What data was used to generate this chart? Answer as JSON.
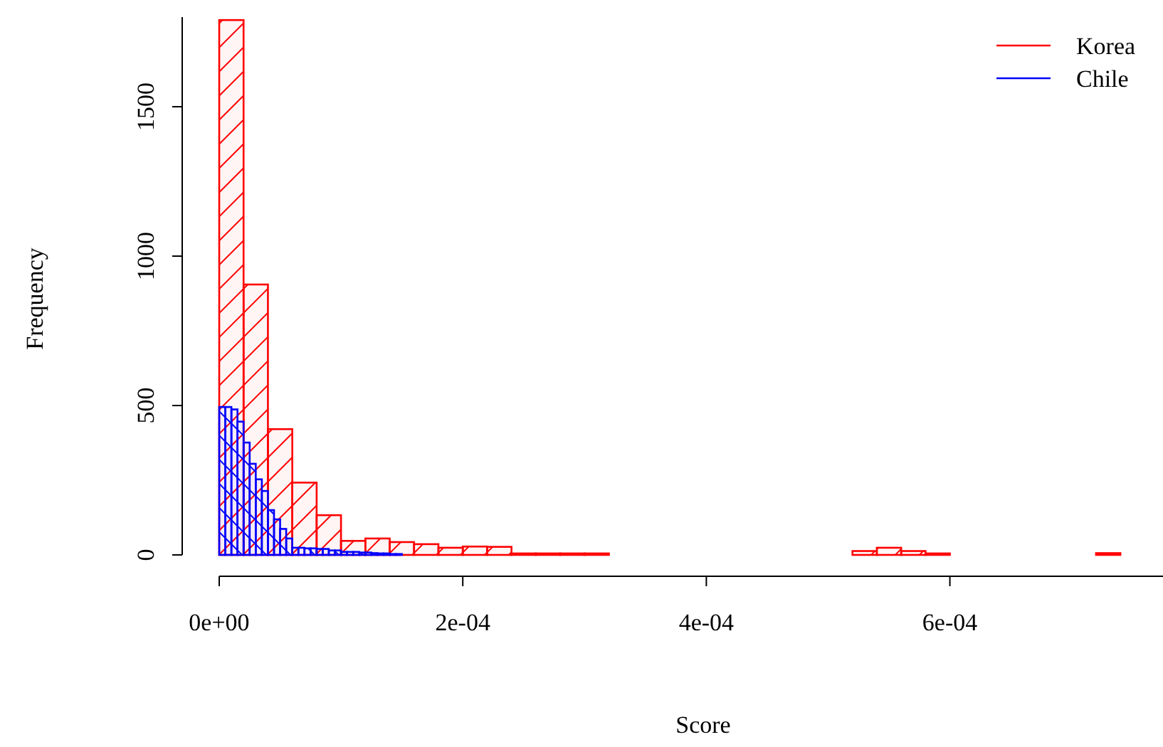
{
  "chart_data": {
    "type": "histogram",
    "xlabel": "Score",
    "ylabel": "Frequency",
    "xlim": [
      0,
      0.000775
    ],
    "ylim": [
      0,
      1800
    ],
    "xticks": [
      {
        "value": 0,
        "label": "0e+00"
      },
      {
        "value": 0.0002,
        "label": "2e-04"
      },
      {
        "value": 0.0004,
        "label": "4e-04"
      },
      {
        "value": 0.0006,
        "label": "6e-04"
      }
    ],
    "yticks": [
      0,
      500,
      1000,
      1500
    ],
    "legend": "top right",
    "grid": false,
    "bins": [
      0,
      2e-05,
      4e-05,
      6e-05,
      8e-05,
      0.0001,
      0.00012,
      0.00014,
      0.00016,
      0.00018,
      0.0002,
      0.00022,
      0.00024,
      0.00026,
      0.00028,
      0.0003,
      0.00032,
      0.00034,
      0.00036,
      0.00038,
      0.0004,
      0.00042,
      0.00044,
      0.00046,
      0.00048,
      0.0005,
      0.00052,
      0.00054,
      0.00056,
      0.00058,
      0.0006,
      0.00062,
      0.00064,
      0.00066,
      0.00068,
      0.0007,
      0.00072,
      0.00074,
      0.00076
    ],
    "series": [
      {
        "name": "Korea",
        "color": "#ff0000",
        "values": [
          1790,
          905,
          421,
          242,
          133,
          47,
          55,
          43,
          36,
          24,
          28,
          27,
          5,
          5,
          5,
          5,
          0,
          0,
          0,
          0,
          0,
          0,
          0,
          0,
          0,
          0,
          13,
          24,
          13,
          5,
          0,
          0,
          0,
          0,
          0,
          0,
          6,
          0
        ]
      },
      {
        "name": "Chile",
        "color": "#0000ff",
        "bins": [
          0,
          5e-06,
          1e-05,
          1.5e-05,
          2e-05,
          2.5e-05,
          3e-05,
          3.5e-05,
          4e-05,
          4.5e-05,
          5e-05,
          5.5e-05,
          6e-05,
          6.5e-05,
          7e-05,
          7.5e-05,
          8e-05,
          8.5e-05,
          9e-05,
          9.5e-05,
          0.0001,
          0.000105,
          0.00011,
          0.000115,
          0.00012,
          0.000125,
          0.00013,
          0.000135,
          0.00014,
          0.000145,
          0.00015
        ],
        "values": [
          495,
          495,
          487,
          446,
          376,
          305,
          253,
          214,
          150,
          119,
          87,
          55,
          24,
          24,
          22,
          22,
          20,
          20,
          15,
          15,
          10,
          10,
          10,
          8,
          8,
          6,
          5,
          5,
          3,
          3
        ]
      }
    ]
  }
}
